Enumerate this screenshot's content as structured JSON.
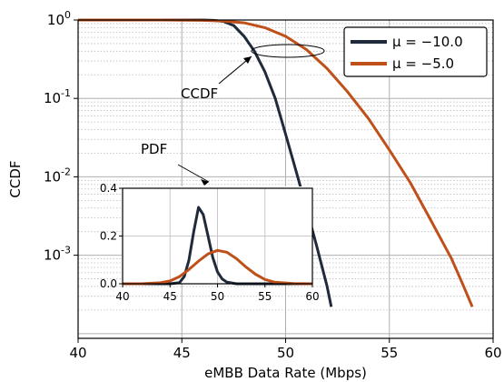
{
  "chart_data": {
    "type": "line",
    "xlabel": "eMBB Data Rate (Mbps)",
    "ylabel": "CCDF",
    "xlim": [
      40,
      60
    ],
    "ylim": [
      0.0001,
      1
    ],
    "yscale": "log",
    "grid": true,
    "legend_position": "top-right",
    "x_ticks": [
      "40",
      "45",
      "50",
      "55",
      "60"
    ],
    "y_ticks": [
      {
        "base": "10",
        "exp": "0",
        "value": 1
      },
      {
        "base": "10",
        "exp": "-1",
        "value": 0.1
      },
      {
        "base": "10",
        "exp": "-2",
        "value": 0.01
      },
      {
        "base": "10",
        "exp": "-3",
        "value": 0.001
      }
    ],
    "series": [
      {
        "name": "μ = −10.0",
        "color": "#1f2a3a",
        "x": [
          40,
          44,
          45,
          46,
          46.5,
          47,
          47.5,
          48,
          48.5,
          49,
          49.5,
          50,
          50.5,
          51,
          51.5,
          52,
          52.2
        ],
        "y": [
          1,
          1,
          1,
          0.999,
          0.99,
          0.96,
          0.85,
          0.62,
          0.4,
          0.22,
          0.1,
          0.035,
          0.012,
          0.004,
          0.0013,
          0.0004,
          0.00022
        ]
      },
      {
        "name": "μ = −5.0",
        "color": "#c0501a",
        "x": [
          40,
          44,
          46,
          47,
          48,
          49,
          50,
          51,
          52,
          53,
          54,
          55,
          56,
          57,
          58,
          58.5,
          59
        ],
        "y": [
          1,
          1,
          0.99,
          0.97,
          0.92,
          0.8,
          0.62,
          0.42,
          0.24,
          0.12,
          0.055,
          0.022,
          0.0085,
          0.0028,
          0.0009,
          0.00045,
          0.00022
        ]
      }
    ],
    "annotations": [
      "CCDF",
      "PDF"
    ],
    "inset": {
      "type": "line",
      "xlim": [
        40,
        60
      ],
      "ylim": [
        0,
        0.4
      ],
      "x_ticks": [
        "40",
        "45",
        "50",
        "55",
        "60"
      ],
      "y_ticks": [
        "0.0",
        "0.2",
        "0.4"
      ],
      "series": [
        {
          "name": "μ = −10.0",
          "color": "#1f2a3a",
          "x": [
            40,
            45,
            46,
            46.5,
            47,
            47.5,
            48,
            48.5,
            49,
            49.5,
            50,
            50.5,
            51,
            52,
            60
          ],
          "y": [
            0,
            0.0,
            0.005,
            0.03,
            0.1,
            0.22,
            0.32,
            0.29,
            0.2,
            0.11,
            0.05,
            0.02,
            0.007,
            0.0,
            0
          ]
        },
        {
          "name": "μ = −5.0",
          "color": "#c0501a",
          "x": [
            40,
            42,
            44,
            45,
            46,
            47,
            48,
            49,
            50,
            51,
            52,
            53,
            54,
            55,
            56,
            58,
            60
          ],
          "y": [
            0,
            0.0,
            0.004,
            0.012,
            0.03,
            0.06,
            0.095,
            0.125,
            0.14,
            0.132,
            0.105,
            0.07,
            0.04,
            0.018,
            0.007,
            0.001,
            0
          ]
        }
      ]
    }
  }
}
